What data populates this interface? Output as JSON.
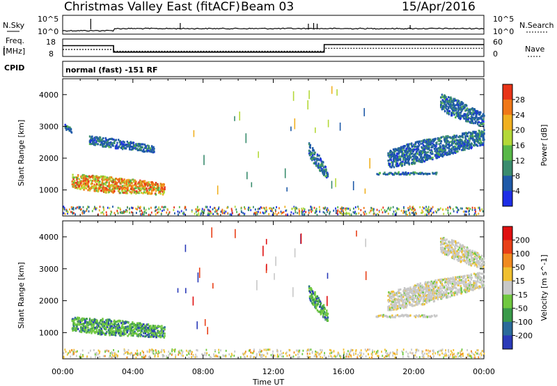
{
  "header": {
    "title": "Christmas Valley East (fitACF)",
    "beam": "Beam 03",
    "date": "15/Apr/2016"
  },
  "strip_panels": {
    "nsky": {
      "label": "N.Sky",
      "ticks": [
        "10^5",
        "10^0"
      ],
      "right_ticks": [
        "10^5",
        "10^0"
      ],
      "right_label": "N.Search"
    },
    "freq": {
      "label_line1": "Freq.",
      "label_line2": "[MHz]",
      "ticks": [
        "18",
        "8"
      ],
      "right_ticks": [
        "60",
        "0"
      ],
      "right_label": "Nave",
      "freq_steps": [
        {
          "start_h": 0,
          "end_h": 2.9,
          "mhz": 14.2
        },
        {
          "start_h": 2.9,
          "end_h": 14.9,
          "mhz": 10.5
        },
        {
          "start_h": 14.9,
          "end_h": 24,
          "mhz": 14.8
        }
      ],
      "nave_steps": [
        {
          "start_h": 0,
          "end_h": 2.9,
          "count": 24
        },
        {
          "start_h": 2.9,
          "end_h": 14.9,
          "count": 18
        },
        {
          "start_h": 14.9,
          "end_h": 24,
          "count": 28
        }
      ]
    },
    "cpid": {
      "label": "CPID",
      "text": "normal (fast) -151 RF"
    }
  },
  "chart_data": [
    {
      "type": "heatmap",
      "quantity": "Power",
      "ylabel": "Slant Range [km]",
      "xlabel": "Time UT",
      "x_range_hours": [
        0,
        24
      ],
      "ylim": [
        180,
        4500
      ],
      "y_ticks": [
        "1000",
        "2000",
        "3000",
        "4000"
      ],
      "x_ticks": [
        "00:00",
        "04:00",
        "08:00",
        "12:00",
        "16:00",
        "20:00",
        "00:00"
      ],
      "colorbar_label": "Power [dB]",
      "colorbar_ticks": [
        "4",
        "8",
        "12",
        "16",
        "20",
        "24",
        "28"
      ],
      "colors": [
        "#1e2ee6",
        "#1f5aa8",
        "#3a8c6e",
        "#58b848",
        "#b4d838",
        "#f0b020",
        "#f07818",
        "#e83418"
      ],
      "scatter_regions": [
        {
          "t0": 0.5,
          "t1": 5.8,
          "r_near": 1300,
          "r_far": 1050,
          "half_width": 260,
          "value": "high"
        },
        {
          "t0": 1.5,
          "t1": 5.2,
          "r_near": 2600,
          "r_far": 2300,
          "half_width": 150,
          "value": "low"
        },
        {
          "t0": 0.1,
          "t1": 0.5,
          "r_near": 3000,
          "r_far": 2900,
          "half_width": 100,
          "value": "low"
        },
        {
          "t0": 14.0,
          "t1": 15.1,
          "r_near": 2300,
          "r_far": 1500,
          "half_width": 250,
          "value": "low"
        },
        {
          "t0": 17.8,
          "t1": 21.3,
          "r_near": 1550,
          "r_far": 1550,
          "half_width": 40,
          "value": "low"
        },
        {
          "t0": 18.5,
          "t1": 24.0,
          "r_near": 2000,
          "r_far": 2700,
          "half_width": 350,
          "value": "low"
        },
        {
          "t0": 21.5,
          "t1": 24.0,
          "r_near": 3800,
          "r_far": 3200,
          "half_width": 300,
          "value": "low"
        }
      ]
    },
    {
      "type": "heatmap",
      "quantity": "Velocity",
      "ylabel": "Slant Range [km]",
      "xlabel": "Time UT",
      "x_range_hours": [
        0,
        24
      ],
      "ylim": [
        180,
        4500
      ],
      "y_ticks": [
        "1000",
        "2000",
        "3000",
        "4000"
      ],
      "x_ticks": [
        "00:00",
        "04:00",
        "08:00",
        "12:00",
        "16:00",
        "20:00",
        "00:00"
      ],
      "colorbar_label": "Velocity [m s^-1]",
      "colorbar_ticks": [
        "200",
        "100",
        "50",
        "15",
        "-15",
        "-50",
        "-100",
        "-200"
      ],
      "colors": [
        "#2a3ab8",
        "#2a6a9a",
        "#3a9a4a",
        "#70c840",
        "#c8c8c8",
        "#f0c030",
        "#f08a20",
        "#e84018",
        "#e01010"
      ],
      "scatter_regions": [
        {
          "t0": 0.5,
          "t1": 5.8,
          "r_near": 1300,
          "r_far": 1050,
          "half_width": 260,
          "value": "green"
        },
        {
          "t0": 14.0,
          "t1": 15.1,
          "r_near": 2300,
          "r_far": 1500,
          "half_width": 250,
          "value": "green"
        },
        {
          "t0": 17.8,
          "t1": 21.3,
          "r_near": 1550,
          "r_far": 1550,
          "half_width": 40,
          "value": "grey"
        },
        {
          "t0": 18.5,
          "t1": 24.0,
          "r_near": 2000,
          "r_far": 2700,
          "half_width": 350,
          "value": "grey"
        },
        {
          "t0": 21.5,
          "t1": 24.0,
          "r_near": 3800,
          "r_far": 3200,
          "half_width": 300,
          "value": "grey"
        }
      ]
    }
  ]
}
